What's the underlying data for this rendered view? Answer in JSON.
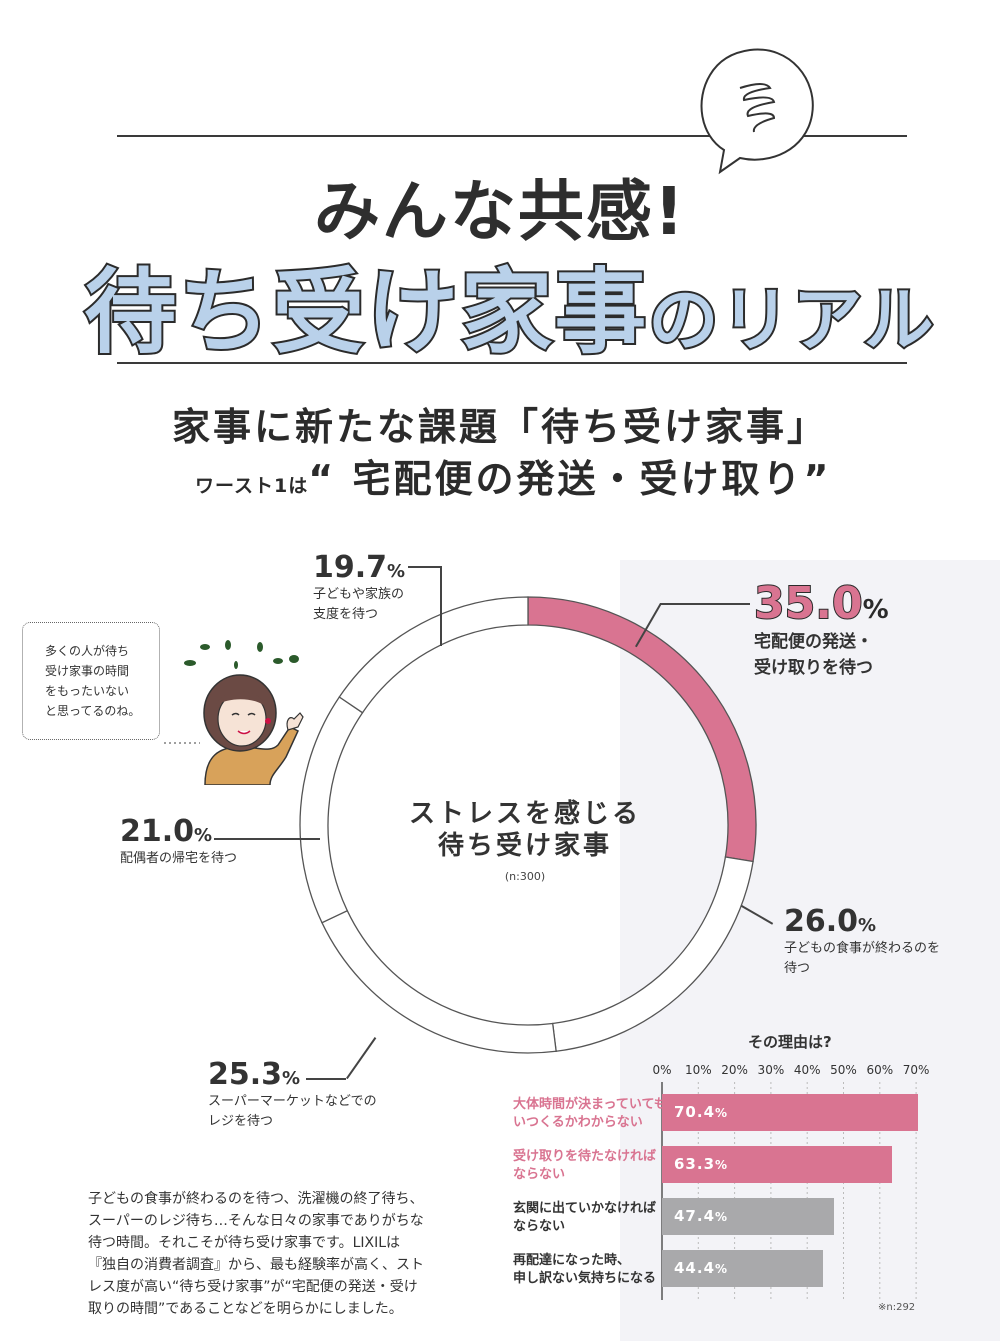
{
  "header": {
    "title_line1": "みんな共感!",
    "title_line2_main": "待ち受け家事",
    "title_line2_small": "のリアル"
  },
  "subtitle": {
    "line1": "家事に新たな課題「待ち受け家事」",
    "line2_lead": "ワースト1は",
    "line2_main": "“ 宅配便の発送・受け取り”"
  },
  "speech_bubble": {
    "lines": [
      "多くの人が待ち",
      "受け家事の時間",
      "をもったいない",
      "と思ってるのね。"
    ]
  },
  "donut": {
    "center_label_line1": "ストレスを感じる",
    "center_label_line2": "待ち受け家事",
    "n_label": "(n:300)"
  },
  "chart_data": [
    {
      "type": "pie",
      "title": "ストレスを感じる待ち受け家事",
      "note": "(n:300)",
      "slices": [
        {
          "label_line1": "宅配便の発送・",
          "label_line2": "受け取りを待つ",
          "pct_num": "35.0",
          "pct_unit": "%",
          "value": 35.0,
          "highlight": true
        },
        {
          "label_line1": "子どもの食事が終わるのを",
          "label_line2": "待つ",
          "pct_num": "26.0",
          "pct_unit": "%",
          "value": 26.0
        },
        {
          "label_line1": "スーパーマーケットなどでの",
          "label_line2": "レジを待つ",
          "pct_num": "25.3",
          "pct_unit": "%",
          "value": 25.3
        },
        {
          "label_line1": "配偶者の帰宅を待つ",
          "label_line2": "",
          "pct_num": "21.0",
          "pct_unit": "%",
          "value": 21.0
        },
        {
          "label_line1": "子どもや家族の",
          "label_line2": "支度を待つ",
          "pct_num": "19.7",
          "pct_unit": "%",
          "value": 19.7
        }
      ]
    },
    {
      "type": "bar",
      "orientation": "horizontal",
      "title": "その理由は?",
      "xlim": [
        0,
        70
      ],
      "ticks": [
        "0%",
        "10%",
        "20%",
        "30%",
        "40%",
        "50%",
        "60%",
        "70%"
      ],
      "categories": [
        [
          "大体時間が決まっていても",
          "いつくるかわからない"
        ],
        [
          "受け取りを待たなければ",
          "ならない"
        ],
        [
          "玄関に出ていかなければ",
          "ならない"
        ],
        [
          "再配達になった時、",
          "申し訳ない気持ちになる"
        ]
      ],
      "values": [
        70.4,
        63.3,
        47.4,
        44.4
      ],
      "value_labels": [
        "70.4",
        "63.3",
        "47.4",
        "44.4"
      ],
      "value_unit": "%",
      "note": "※n:292"
    }
  ],
  "colors": {
    "pink": "#d97491",
    "gray_bar": "#a9a9ab",
    "title_blue": "#b9d1ea"
  },
  "body_text": "子どもの食事が終わるのを待つ、洗濯機の終了待ち、スーパーのレジ待ち…そんな日々の家事でありがちな待つ時間。それこそが待ち受け家事です。LIXILは『独自の消費者調査』から、最も経験率が高く、ストレス度が高い“待ち受け家事”が“宅配便の発送・受け取りの時間”であることなどを明らかにしました。"
}
